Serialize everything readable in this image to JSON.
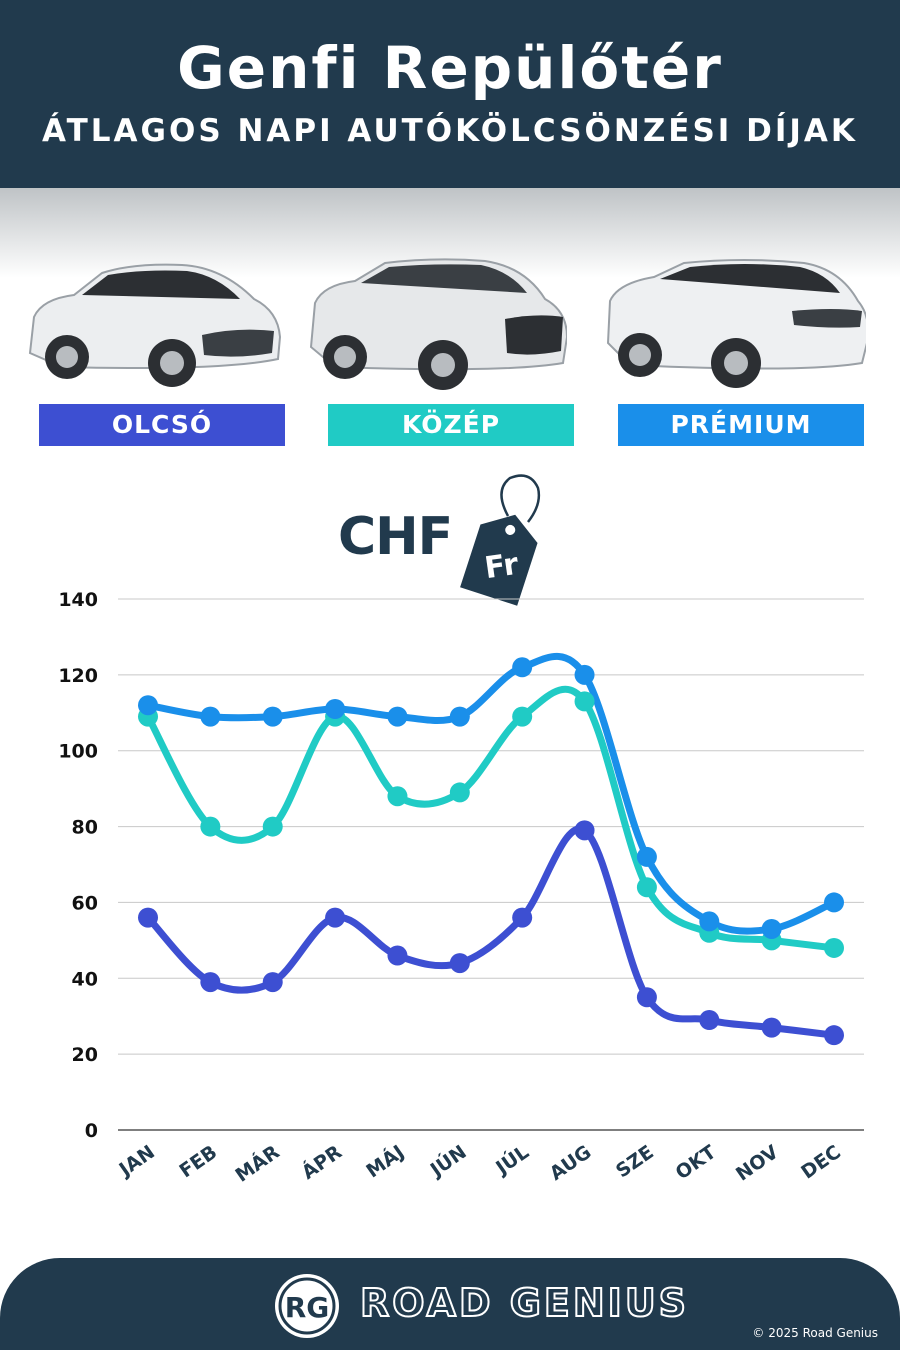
{
  "header": {
    "title": "Genfi Repülőtér",
    "subtitle": "ÁTLAGOS NAPI AUTÓKÖLCSÖNZÉSI DÍJAK"
  },
  "categories": [
    {
      "label": "OLCSÓ",
      "color": "#3d4fd2"
    },
    {
      "label": "KÖZÉP",
      "color": "#20cbc5"
    },
    {
      "label": "PRÉMIUM",
      "color": "#1a8fea"
    }
  ],
  "currency": {
    "label": "CHF",
    "tag": "Fr"
  },
  "chart_data": {
    "type": "line",
    "categories": [
      "JAN",
      "FEB",
      "MÁR",
      "ÁPR",
      "MÁJ",
      "JÚN",
      "JÚL",
      "AUG",
      "SZE",
      "OKT",
      "NOV",
      "DEC"
    ],
    "ylim": [
      0,
      140
    ],
    "yticks": [
      0,
      20,
      40,
      60,
      80,
      100,
      120,
      140
    ],
    "grid": true,
    "series": [
      {
        "name": "OLCSÓ",
        "color": "#3d4fd2",
        "values": [
          56,
          39,
          39,
          56,
          46,
          44,
          56,
          79,
          35,
          29,
          27,
          25
        ]
      },
      {
        "name": "KÖZÉP",
        "color": "#20cbc5",
        "values": [
          109,
          80,
          80,
          109,
          88,
          89,
          109,
          113,
          64,
          52,
          50,
          48
        ]
      },
      {
        "name": "PRÉMIUM",
        "color": "#1a8fea",
        "values": [
          112,
          109,
          109,
          111,
          109,
          109,
          122,
          120,
          72,
          55,
          53,
          60
        ]
      }
    ]
  },
  "footer": {
    "logo": "RG",
    "brand": "ROAD GENIUS",
    "copyright": "© 2025 Road Genius"
  }
}
